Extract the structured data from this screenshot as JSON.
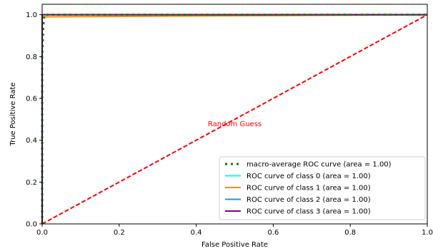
{
  "chart_data": {
    "type": "line",
    "title": "",
    "xlabel": "False Positive Rate",
    "ylabel": "True Positive Rate",
    "xlim": [
      0.0,
      1.0
    ],
    "ylim": [
      0.0,
      1.05
    ],
    "x_ticks": [
      "0.0",
      "0.2",
      "0.4",
      "0.6",
      "0.8",
      "1.0"
    ],
    "y_ticks": [
      "0.0",
      "0.2",
      "0.4",
      "0.6",
      "0.8",
      "1.0"
    ],
    "x_tick_values": [
      0.0,
      0.2,
      0.4,
      0.6,
      0.8,
      1.0
    ],
    "y_tick_values": [
      0.0,
      0.2,
      0.4,
      0.6,
      0.8,
      1.0
    ],
    "grid": false,
    "legend_position": "lower-right",
    "series": [
      {
        "name": "macro-average ROC curve (area = 1.00)",
        "color": "#008000",
        "style": "dotted",
        "x": [
          0.0,
          0.0,
          0.003,
          0.006,
          1.0
        ],
        "y": [
          0.0,
          0.8,
          0.95,
          1.0,
          1.0
        ]
      },
      {
        "name": "ROC curve of class 0 (area = 1.00)",
        "color": "#00ffff",
        "style": "solid",
        "x": [
          0.0,
          0.0,
          1.0
        ],
        "y": [
          0.0,
          1.0,
          1.0
        ]
      },
      {
        "name": "ROC curve of class 1 (area = 1.00)",
        "color": "#ff8c00",
        "style": "solid",
        "x": [
          0.0,
          0.0,
          1.0
        ],
        "y": [
          0.0,
          0.99,
          1.0
        ]
      },
      {
        "name": "ROC curve of class 2 (area = 1.00)",
        "color": "#1e90ff",
        "style": "solid",
        "x": [
          0.0,
          0.0,
          1.0
        ],
        "y": [
          0.0,
          1.0,
          1.0
        ]
      },
      {
        "name": "ROC curve of class 3 (area = 1.00)",
        "color": "#800080",
        "style": "solid",
        "x": [
          0.0,
          0.0,
          1.0
        ],
        "y": [
          0.0,
          1.0,
          1.0
        ]
      }
    ],
    "reference_line": {
      "color": "#ff0000",
      "style": "dashed",
      "x": [
        0.0,
        1.0
      ],
      "y": [
        0.0,
        1.0
      ]
    },
    "annotations": [
      {
        "text": "Random Guess",
        "x": 0.5,
        "y": 0.48,
        "color": "#ff0000"
      }
    ]
  }
}
